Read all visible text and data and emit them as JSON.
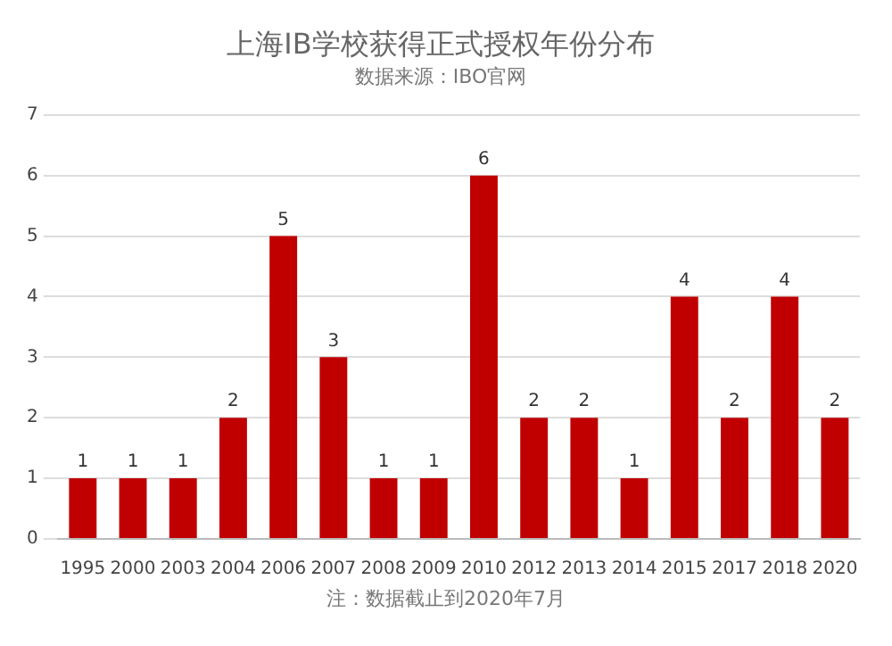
{
  "chart_data": {
    "type": "bar",
    "title": "上海IB学校获得正式授权年份分布",
    "subtitle": "数据来源：IBO官网",
    "categories": [
      "1995",
      "2000",
      "2003",
      "2004",
      "2006",
      "2007",
      "2008",
      "2009",
      "2010",
      "2012",
      "2013",
      "2014",
      "2015",
      "2017",
      "2018",
      "2020"
    ],
    "values": [
      1,
      1,
      1,
      2,
      5,
      3,
      1,
      1,
      6,
      2,
      2,
      1,
      4,
      2,
      4,
      2
    ],
    "color": "#c00000",
    "ylim": [
      0,
      7
    ],
    "yticks": [
      0,
      1,
      2,
      3,
      4,
      5,
      6,
      7
    ],
    "grid": "y",
    "data_labels": true,
    "annotations": [
      "注：数据截止到2020年7月"
    ]
  }
}
